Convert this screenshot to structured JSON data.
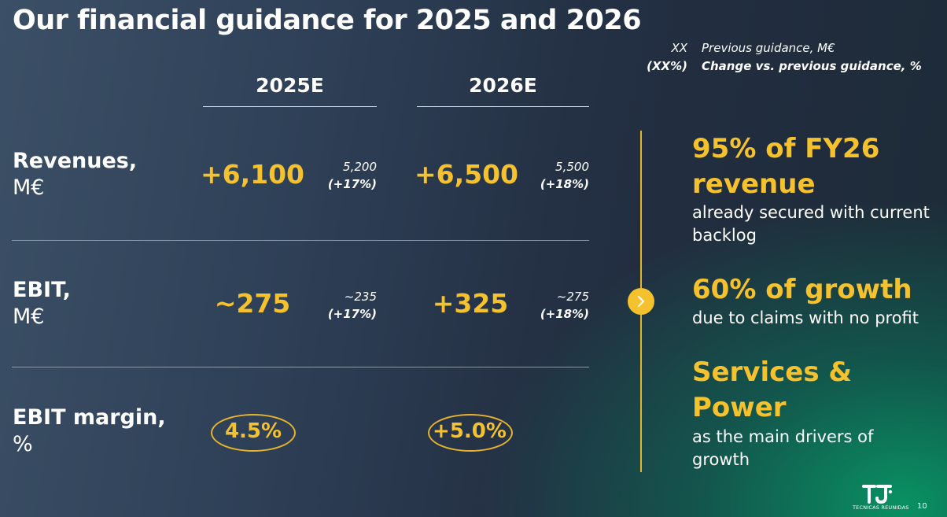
{
  "title": "Our financial guidance for 2025 and 2026",
  "legend": {
    "prev_key": "XX",
    "prev_label": "Previous guidance, M€",
    "chg_key": "(XX%)",
    "chg_label": "Change vs. previous guidance, %"
  },
  "columns": [
    "2025E",
    "2026E"
  ],
  "rows": [
    {
      "label": "Revenues,",
      "unit": "M€",
      "values": [
        {
          "big": "+6,100",
          "prev": "5,200",
          "chg": "(+17%)"
        },
        {
          "big": "+6,500",
          "prev": "5,500",
          "chg": "(+18%)"
        }
      ]
    },
    {
      "label": "EBIT,",
      "unit": "M€",
      "values": [
        {
          "big": "~275",
          "prev": "~235",
          "chg": "(+17%)"
        },
        {
          "big": "+325",
          "prev": "~275",
          "chg": "(+18%)"
        }
      ]
    },
    {
      "label": "EBIT margin,",
      "unit": "%",
      "values": [
        {
          "big": "4.5%"
        },
        {
          "big": "+5.0%"
        }
      ]
    }
  ],
  "highlights": [
    {
      "headline_1": "95% of FY26",
      "headline_2": "revenue",
      "sub_1": "already secured with current",
      "sub_2": "backlog"
    },
    {
      "headline_1": "60% of growth",
      "sub_1": "due to claims with no profit"
    },
    {
      "headline_1": "Services &",
      "headline_2": "Power",
      "sub_1": "as the main drivers of",
      "sub_2": "growth"
    }
  ],
  "footer": {
    "logo_text": "TECNICAS REUNIDAS",
    "page_number": "10"
  },
  "colors": {
    "accent": "#f5c22e",
    "text": "#ffffff"
  },
  "icons": {
    "arrow": "chevron-right-icon",
    "logo": "tr-logo-icon"
  }
}
